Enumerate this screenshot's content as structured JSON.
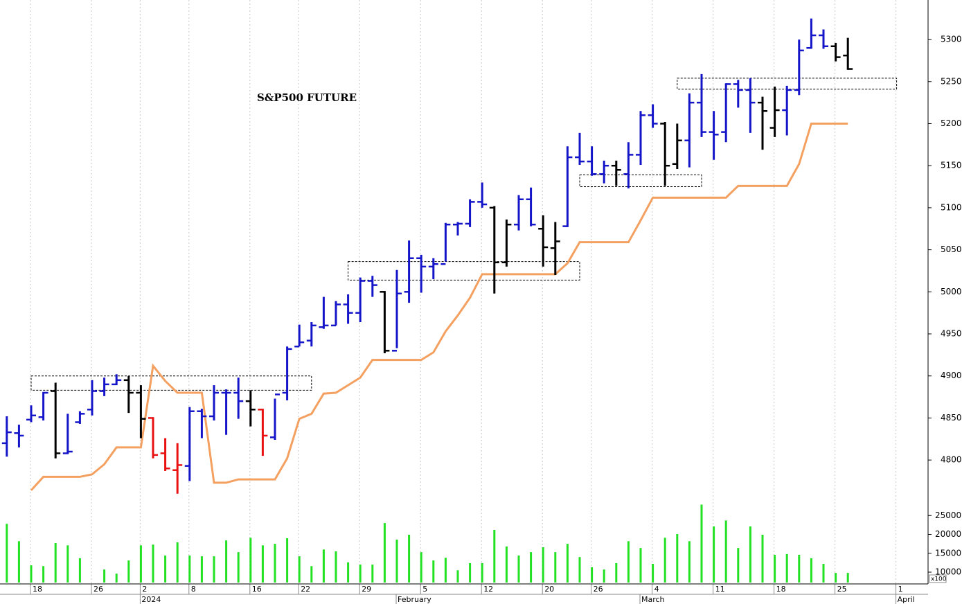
{
  "chart_data": {
    "type": "ohlc",
    "title": "S&P500 FUTURE",
    "categories": [
      null,
      null,
      "18",
      null,
      null,
      null,
      null,
      "26",
      null,
      null,
      null,
      "2",
      null,
      null,
      null,
      "8",
      null,
      null,
      null,
      null,
      "16",
      null,
      null,
      null,
      "22",
      null,
      null,
      null,
      null,
      "29",
      null,
      null,
      null,
      null,
      "5",
      null,
      null,
      null,
      null,
      "12",
      null,
      null,
      null,
      null,
      "20",
      null,
      null,
      null,
      "26",
      null,
      null,
      null,
      null,
      "4",
      null,
      null,
      null,
      null,
      "11",
      null,
      null,
      null,
      null,
      "18",
      null,
      null,
      null,
      null,
      "25",
      null,
      null,
      null,
      null,
      "1"
    ],
    "periods": [
      {
        "at": 11,
        "label": "2024"
      },
      {
        "at": 32,
        "label": "February"
      },
      {
        "at": 52,
        "label": "March"
      },
      {
        "at": 73,
        "label": "April"
      }
    ],
    "open": [
      4820,
      4832,
      4848,
      4851,
      4882,
      4808,
      4845,
      4860,
      4882,
      4890,
      4895,
      4880,
      4850,
      4808,
      4788,
      4793,
      4858,
      4852,
      4880,
      4880,
      4870,
      4860,
      4827,
      4880,
      4935,
      4942,
      4958,
      4960,
      4985,
      4975,
      5013,
      5000,
      4930,
      5000,
      5040,
      5030,
      5033,
      5080,
      5081,
      5107,
      5100,
      5035,
      5080,
      5110,
      5075,
      5052,
      5078,
      5160,
      5155,
      5140,
      5150,
      5140,
      5163,
      5210,
      5200,
      5152,
      5180,
      5225,
      5190,
      5190,
      5247,
      5240,
      5225,
      5195,
      5216,
      5240,
      5290,
      5305,
      5292,
      5281,
      null,
      null,
      null,
      null
    ],
    "high": [
      4852,
      4842,
      4865,
      4881,
      4892,
      4855,
      4858,
      4895,
      4898,
      4902,
      4900,
      4889,
      4851,
      4826,
      4820,
      4863,
      4861,
      4889,
      4884,
      4898,
      4883,
      4861,
      4873,
      4935,
      4961,
      4964,
      4994,
      4989,
      4997,
      5017,
      5019,
      5001,
      5026,
      5061,
      5044,
      5040,
      5082,
      5083,
      5110,
      5130,
      5102,
      5086,
      5115,
      5124,
      5091,
      5083,
      5173,
      5189,
      5173,
      5156,
      5156,
      5178,
      5215,
      5223,
      5202,
      5200,
      5236,
      5259,
      5215,
      5248,
      5252,
      5254,
      5232,
      5244,
      5245,
      5300,
      5325,
      5312,
      5296,
      5302,
      null,
      null,
      null,
      null
    ],
    "low": [
      4804,
      4815,
      4845,
      4847,
      4802,
      4807,
      4843,
      4853,
      4876,
      4889,
      4856,
      4826,
      4802,
      4787,
      4760,
      4775,
      4826,
      4847,
      4830,
      4849,
      4840,
      4805,
      4824,
      4871,
      4935,
      4935,
      4956,
      4960,
      4962,
      4964,
      4994,
      4927,
      4933,
      4987,
      4999,
      5015,
      5036,
      5067,
      5077,
      5100,
      4998,
      5030,
      5073,
      5078,
      5030,
      5020,
      5077,
      5151,
      5138,
      5129,
      5126,
      5123,
      5151,
      5195,
      5126,
      5146,
      5148,
      5184,
      5157,
      5178,
      5219,
      5189,
      5169,
      5184,
      5186,
      5234,
      5289,
      5289,
      5274,
      5264,
      null,
      null,
      null,
      null
    ],
    "close": [
      4833,
      4829,
      4853,
      4880,
      4808,
      4810,
      4855,
      4882,
      4890,
      4895,
      4880,
      4849,
      4806,
      4790,
      4794,
      4858,
      4852,
      4880,
      4880,
      4870,
      4860,
      4829,
      4878,
      4932,
      4940,
      4960,
      4960,
      4985,
      4975,
      5013,
      5008,
      4930,
      4998,
      5040,
      5030,
      5033,
      5080,
      5081,
      5107,
      5104,
      5035,
      5080,
      5110,
      5080,
      5053,
      5060,
      5160,
      5155,
      5140,
      5150,
      5145,
      5163,
      5210,
      5200,
      5150,
      5180,
      5225,
      5190,
      5187,
      5247,
      5240,
      5225,
      5215,
      5216,
      5240,
      5287,
      5305,
      5292,
      5279,
      5265,
      null,
      null,
      null,
      null
    ],
    "bar_colors": [
      "#1414c8",
      "#1414c8",
      "#1414c8",
      "#1414c8",
      "#000000",
      "#1414c8",
      "#1414c8",
      "#1414c8",
      "#1414c8",
      "#1414c8",
      "#000000",
      "#000000",
      "#e81010",
      "#e81010",
      "#e81010",
      "#1414c8",
      "#1414c8",
      "#1414c8",
      "#1414c8",
      "#1414c8",
      "#000000",
      "#e81010",
      "#1414c8",
      "#1414c8",
      "#1414c8",
      "#1414c8",
      "#1414c8",
      "#1414c8",
      "#1414c8",
      "#1414c8",
      "#1414c8",
      "#000000",
      "#1414c8",
      "#1414c8",
      "#1414c8",
      "#1414c8",
      "#1414c8",
      "#1414c8",
      "#1414c8",
      "#1414c8",
      "#000000",
      "#000000",
      "#1414c8",
      "#1414c8",
      "#000000",
      "#000000",
      "#1414c8",
      "#1414c8",
      "#1414c8",
      "#1414c8",
      "#000000",
      "#1414c8",
      "#1414c8",
      "#1414c8",
      "#000000",
      "#000000",
      "#1414c8",
      "#1414c8",
      "#1414c8",
      "#1414c8",
      "#1414c8",
      "#1414c8",
      "#000000",
      "#000000",
      "#1414c8",
      "#1414c8",
      "#1414c8",
      "#1414c8",
      "#000000",
      "#000000"
    ],
    "stop": {
      "color": "#f4a060",
      "values": [
        null,
        null,
        4764,
        4780,
        4780,
        4780,
        4780,
        4783,
        4795,
        4815,
        4815,
        4815,
        4912,
        4894,
        4880,
        4880,
        4880,
        4773,
        4773,
        4777,
        4777,
        4777,
        4777,
        4802,
        4849,
        4855,
        4879,
        4880,
        4889,
        4898,
        4919,
        4919,
        4919,
        4919,
        4919,
        4928,
        4953,
        4972,
        4993,
        5021,
        5021,
        5021,
        5021,
        5021,
        5021,
        5021,
        5034,
        5059,
        5059,
        5059,
        5059,
        5059,
        5085,
        5112,
        5112,
        5112,
        5112,
        5112,
        5112,
        5112,
        5126,
        5126,
        5126,
        5126,
        5126,
        5152,
        5200,
        5200,
        5200,
        5200,
        null,
        null,
        null,
        null
      ]
    },
    "zones": [
      {
        "from": 2,
        "to": 25,
        "low": 4883,
        "high": 4900
      },
      {
        "from": 28,
        "to": 47,
        "low": 5014,
        "high": 5036
      },
      {
        "from": 47,
        "to": 57,
        "low": 5125,
        "high": 5139
      },
      {
        "from": 55,
        "to": 73,
        "low": 5241,
        "high": 5254
      }
    ],
    "ylim": [
      4754,
      5347
    ],
    "yticks": [
      4800,
      4850,
      4900,
      4950,
      5000,
      5050,
      5100,
      5150,
      5200,
      5250,
      5300
    ],
    "volume": {
      "color": "#22e022",
      "unit_label": "x100",
      "ylim": [
        7250,
        30000
      ],
      "yticks": [
        10000,
        15000,
        20000,
        25000
      ],
      "values": [
        22800,
        18200,
        11800,
        11600,
        17700,
        17100,
        13700,
        null,
        10700,
        9600,
        13100,
        17100,
        17300,
        14400,
        17900,
        14400,
        14200,
        14200,
        18400,
        15300,
        19100,
        17100,
        17500,
        19000,
        14200,
        11600,
        16000,
        15500,
        12600,
        12000,
        12000,
        23000,
        18600,
        19900,
        15300,
        13100,
        13800,
        10500,
        12400,
        12400,
        21200,
        16800,
        14400,
        15300,
        16600,
        15300,
        17500,
        14000,
        11300,
        10700,
        12400,
        18200,
        16400,
        12200,
        19100,
        20100,
        18200,
        27900,
        22100,
        23700,
        16400,
        22100,
        19900,
        14600,
        14800,
        14600,
        13700,
        12200,
        9800,
        9800,
        null,
        null,
        null,
        null
      ]
    },
    "grid": true
  }
}
